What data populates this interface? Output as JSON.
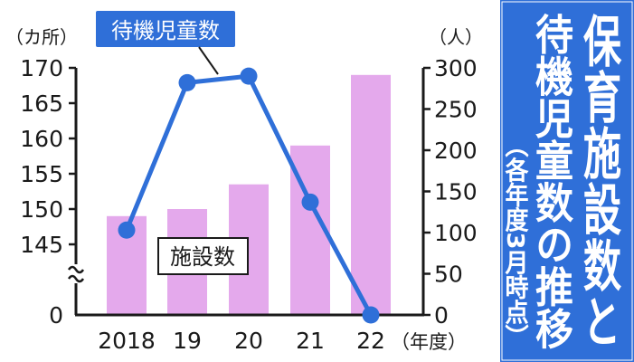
{
  "chart_data": {
    "type": "bar",
    "title": "保育施設数と待機児童数の推移",
    "title_lines": [
      "保育施設数と",
      "待機児童数の推移"
    ],
    "subtitle": "（各年度3月時点）",
    "categories": [
      "2018",
      "19",
      "20",
      "21",
      "22"
    ],
    "x_unit": "（年度）",
    "left_axis": {
      "unit": "（カ所）",
      "ticks": [
        "170",
        "165",
        "160",
        "155",
        "150",
        "145",
        "0"
      ],
      "tick_values": [
        170,
        165,
        160,
        155,
        150,
        145
      ],
      "zero_label": "0",
      "ylim": [
        145,
        170
      ],
      "broken": true
    },
    "right_axis": {
      "unit": "（人）",
      "ticks": [
        "300",
        "250",
        "200",
        "150",
        "100",
        "50",
        "0"
      ],
      "tick_values": [
        300,
        250,
        200,
        150,
        100,
        50,
        0
      ],
      "ylim": [
        0,
        300
      ]
    },
    "series": [
      {
        "name": "施設数",
        "kind": "bar",
        "axis": "left",
        "color": "#e4a9ec",
        "values": [
          149,
          150,
          153.5,
          159,
          169
        ]
      },
      {
        "name": "待機児童数",
        "kind": "line",
        "axis": "right",
        "color": "#2f6fd8",
        "values": [
          103,
          282,
          290,
          137,
          0
        ]
      }
    ],
    "colors": {
      "side_panel": "#2f6fd8",
      "label_box": "#2f6fd8"
    }
  }
}
